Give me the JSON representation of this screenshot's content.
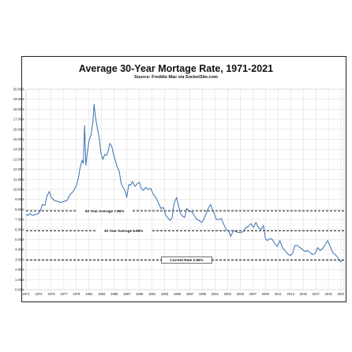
{
  "chart_data": {
    "type": "line",
    "title": "Average 30-Year Mortage Rate, 1971-2021",
    "subtitle": "Source: Freddie Mac via SocketSite.com",
    "xlabel": "",
    "ylabel": "",
    "xlim": [
      1971,
      2021.5
    ],
    "ylim": [
      0,
      20
    ],
    "x_ticks": [
      "1971",
      "1973",
      "1975",
      "1977",
      "1979",
      "1981",
      "1983",
      "1985",
      "1987",
      "1989",
      "1991",
      "1993",
      "1995",
      "1997",
      "1999",
      "2001",
      "2003",
      "2005",
      "2007",
      "2009",
      "2011",
      "2013",
      "2015",
      "2017",
      "2019",
      "2021"
    ],
    "y_ticks": [
      "0.00%",
      "1.00%",
      "2.00%",
      "3.00%",
      "4.00%",
      "5.00%",
      "6.00%",
      "7.00%",
      "8.00%",
      "9.00%",
      "10.00%",
      "11.00%",
      "12.00%",
      "13.00%",
      "14.00%",
      "15.00%",
      "16.00%",
      "17.00%",
      "18.00%",
      "19.00%",
      "20.00%"
    ],
    "grid": true,
    "line_color": "#3a6fb0",
    "series": [
      {
        "x": [
          1971.0,
          1971.3,
          1971.6,
          1972.0,
          1972.5,
          1973.0,
          1973.3,
          1973.6,
          1974.0,
          1974.3,
          1974.7,
          1975.0,
          1975.5,
          1976.0,
          1976.5,
          1977.0,
          1977.5,
          1978.0,
          1978.5,
          1979.0,
          1979.3,
          1979.6,
          1979.9,
          1980.1,
          1980.3,
          1980.5,
          1980.8,
          1981.0,
          1981.3,
          1981.6,
          1981.8,
          1982.0,
          1982.3,
          1982.6,
          1982.9,
          1983.2,
          1983.5,
          1983.8,
          1984.0,
          1984.3,
          1984.6,
          1984.9,
          1985.2,
          1985.5,
          1985.8,
          1986.1,
          1986.4,
          1986.7,
          1987.0,
          1987.3,
          1987.6,
          1987.9,
          1988.3,
          1988.7,
          1989.0,
          1989.3,
          1989.6,
          1990.0,
          1990.4,
          1990.8,
          1991.2,
          1991.6,
          1992.0,
          1992.4,
          1992.8,
          1993.2,
          1993.6,
          1993.9,
          1994.2,
          1994.5,
          1994.9,
          1995.2,
          1995.5,
          1995.9,
          1996.2,
          1996.5,
          1996.9,
          1997.3,
          1997.7,
          1998.1,
          1998.5,
          1998.9,
          1999.2,
          1999.6,
          2000.0,
          2000.3,
          2000.6,
          2000.9,
          2001.2,
          2001.6,
          2002.0,
          2002.4,
          2002.8,
          2003.2,
          2003.5,
          2003.9,
          2004.3,
          2004.7,
          2005.1,
          2005.5,
          2005.9,
          2006.3,
          2006.7,
          2007.1,
          2007.5,
          2007.9,
          2008.3,
          2008.7,
          2009.0,
          2009.3,
          2009.7,
          2010.1,
          2010.5,
          2010.9,
          2011.3,
          2011.7,
          2012.1,
          2012.5,
          2012.9,
          2013.3,
          2013.7,
          2014.1,
          2014.5,
          2014.9,
          2015.3,
          2015.7,
          2016.1,
          2016.5,
          2016.9,
          2017.3,
          2017.7,
          2018.1,
          2018.5,
          2018.9,
          2019.3,
          2019.7,
          2020.1,
          2020.5,
          2020.9,
          2021.2
        ],
        "y": [
          7.5,
          7.4,
          7.6,
          7.4,
          7.5,
          7.6,
          7.9,
          8.5,
          8.4,
          9.3,
          9.8,
          9.2,
          8.9,
          8.8,
          8.7,
          8.8,
          8.9,
          9.5,
          9.8,
          10.4,
          11.1,
          12.2,
          12.9,
          12.6,
          16.4,
          12.4,
          14.0,
          14.9,
          15.4,
          16.6,
          18.5,
          17.3,
          16.2,
          15.2,
          13.6,
          13.0,
          13.5,
          13.4,
          13.7,
          14.6,
          14.3,
          13.5,
          12.8,
          12.2,
          11.8,
          10.6,
          10.2,
          9.9,
          9.2,
          10.5,
          10.4,
          10.8,
          10.3,
          10.6,
          10.7,
          10.1,
          9.9,
          10.2,
          10.0,
          10.1,
          9.5,
          9.2,
          8.7,
          8.1,
          8.2,
          7.4,
          7.1,
          6.9,
          7.2,
          8.6,
          9.2,
          8.4,
          7.6,
          7.3,
          7.2,
          8.1,
          7.8,
          7.8,
          7.4,
          7.0,
          6.9,
          6.7,
          7.0,
          7.6,
          8.2,
          8.5,
          8.0,
          7.6,
          7.0,
          7.0,
          7.1,
          6.5,
          6.0,
          5.8,
          5.3,
          5.9,
          5.8,
          5.7,
          5.7,
          5.8,
          6.2,
          6.3,
          6.6,
          6.2,
          6.7,
          6.2,
          6.0,
          6.4,
          5.1,
          4.9,
          5.1,
          5.0,
          4.6,
          4.3,
          4.9,
          4.2,
          3.9,
          3.6,
          3.4,
          3.6,
          4.4,
          4.4,
          4.2,
          4.0,
          3.8,
          3.9,
          3.7,
          3.5,
          3.6,
          4.2,
          3.9,
          4.1,
          4.5,
          4.9,
          4.3,
          3.7,
          3.5,
          3.2,
          2.8,
          2.9
        ]
      }
    ],
    "reference_lines": [
      {
        "label": "50 Year Average 7.86%",
        "value": 7.86
      },
      {
        "label": "30 Year Average 5.88%",
        "value": 5.88
      },
      {
        "label": "Current Rate 2.95%",
        "value": 2.95
      }
    ]
  }
}
